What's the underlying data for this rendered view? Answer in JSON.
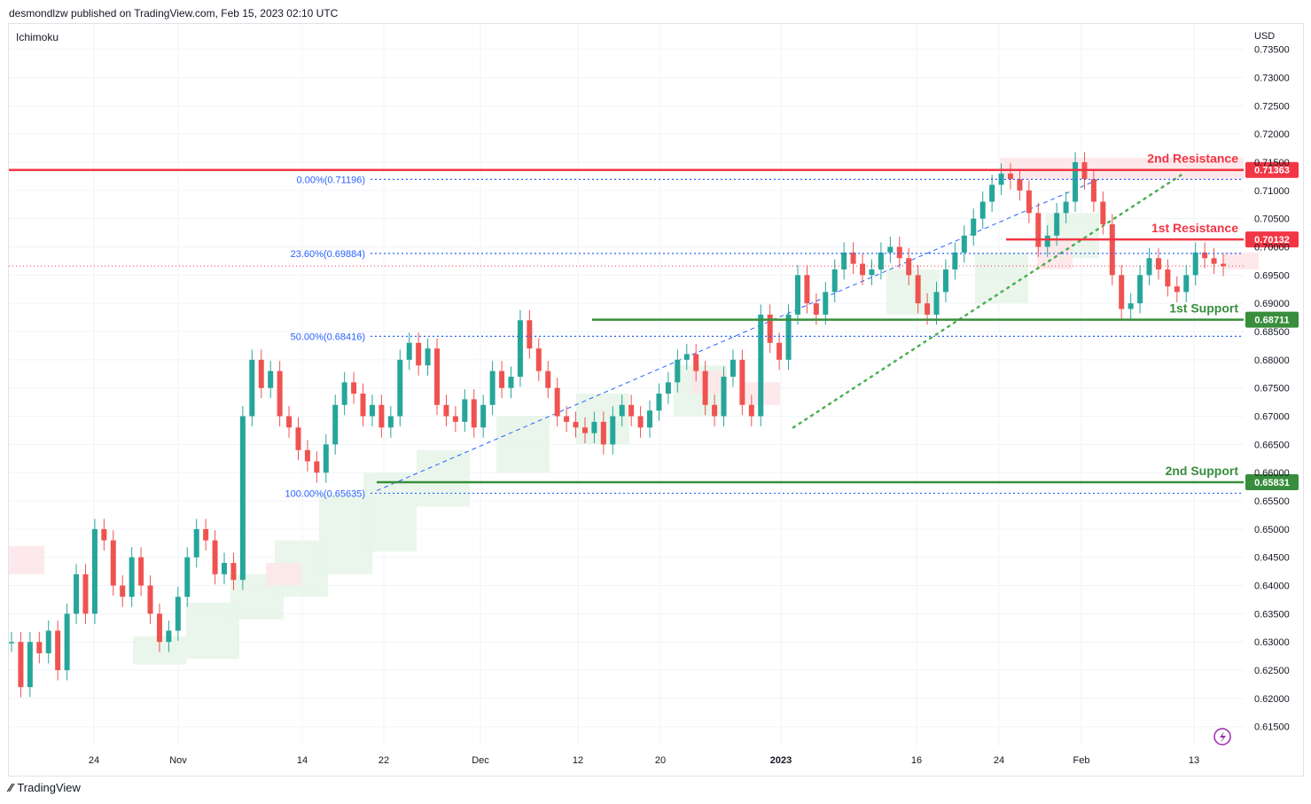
{
  "header": {
    "publisher_line": "desmondlzw published on TradingView.com, Feb 15, 2023 02:10 UTC"
  },
  "indicator_label": "Ichimoku",
  "footer": {
    "brand": "TradingView",
    "logo_icon": "tradingview-logo-icon"
  },
  "colors": {
    "resistance": "#f23645",
    "support": "#388e3c",
    "fib": "#2962ff",
    "candle_up": "#26a69a",
    "candle_down": "#ef5350",
    "trend_green": "#4caf50",
    "cloud_green": "#e8f5e9",
    "cloud_red": "#fde7e9"
  },
  "chart_data": {
    "type": "candlestick",
    "symbol_currency": "USD",
    "ylim": [
      0.6115,
      0.7395
    ],
    "y_ticks": [
      "0.73500",
      "0.73000",
      "0.72500",
      "0.72000",
      "0.71500",
      "0.71000",
      "0.70500",
      "0.70000",
      "0.69500",
      "0.69000",
      "0.68500",
      "0.68000",
      "0.67500",
      "0.67000",
      "0.66500",
      "0.66000",
      "0.65500",
      "0.65000",
      "0.64500",
      "0.64000",
      "0.63500",
      "0.63000",
      "0.62500",
      "0.62000",
      "0.61500"
    ],
    "x_ticks": [
      {
        "label": "24",
        "bold": false
      },
      {
        "label": "Nov",
        "bold": false
      },
      {
        "label": "14",
        "bold": false
      },
      {
        "label": "22",
        "bold": false
      },
      {
        "label": "Dec",
        "bold": false
      },
      {
        "label": "12",
        "bold": false
      },
      {
        "label": "20",
        "bold": false
      },
      {
        "label": "2023",
        "bold": true
      },
      {
        "label": "16",
        "bold": false
      },
      {
        "label": "24",
        "bold": false
      },
      {
        "label": "Feb",
        "bold": false
      },
      {
        "label": "13",
        "bold": false
      }
    ],
    "levels": [
      {
        "name": "2nd Resistance",
        "value": 0.71363,
        "tag": "0.71363",
        "kind": "resistance"
      },
      {
        "name": "1st Resistance",
        "value": 0.70132,
        "tag": "0.70132",
        "kind": "resistance"
      },
      {
        "name": "1st Support",
        "value": 0.68711,
        "tag": "0.68711",
        "kind": "support"
      },
      {
        "name": "2nd Support",
        "value": 0.65831,
        "tag": "0.65831",
        "kind": "support"
      }
    ],
    "fibonacci": [
      {
        "label": "0.00%(0.71196)",
        "value": 0.71196
      },
      {
        "label": "23.60%(0.69884)",
        "value": 0.69884
      },
      {
        "label": "50.00%(0.68416)",
        "value": 0.68416
      },
      {
        "label": "100.00%(0.65635)",
        "value": 0.65635
      }
    ],
    "close_price_line": 0.6966,
    "price_path": [
      0.63,
      0.622,
      0.63,
      0.628,
      0.632,
      0.625,
      0.635,
      0.642,
      0.635,
      0.65,
      0.648,
      0.64,
      0.638,
      0.645,
      0.64,
      0.635,
      0.63,
      0.632,
      0.638,
      0.645,
      0.65,
      0.648,
      0.642,
      0.644,
      0.641,
      0.67,
      0.68,
      0.675,
      0.678,
      0.67,
      0.668,
      0.664,
      0.662,
      0.66,
      0.665,
      0.672,
      0.676,
      0.674,
      0.67,
      0.672,
      0.668,
      0.67,
      0.68,
      0.683,
      0.679,
      0.682,
      0.672,
      0.67,
      0.669,
      0.673,
      0.668,
      0.672,
      0.678,
      0.675,
      0.677,
      0.687,
      0.682,
      0.678,
      0.675,
      0.67,
      0.669,
      0.668,
      0.667,
      0.669,
      0.665,
      0.67,
      0.672,
      0.67,
      0.668,
      0.671,
      0.674,
      0.676,
      0.68,
      0.681,
      0.678,
      0.672,
      0.67,
      0.677,
      0.68,
      0.672,
      0.67,
      0.688,
      0.683,
      0.68,
      0.688,
      0.695,
      0.69,
      0.688,
      0.692,
      0.696,
      0.699,
      0.697,
      0.695,
      0.696,
      0.699,
      0.7,
      0.698,
      0.695,
      0.69,
      0.688,
      0.692,
      0.696,
      0.699,
      0.702,
      0.705,
      0.708,
      0.711,
      0.713,
      0.712,
      0.71,
      0.706,
      0.7,
      0.702,
      0.706,
      0.708,
      0.715,
      0.712,
      0.708,
      0.704,
      0.695,
      0.689,
      0.69,
      0.695,
      0.698,
      0.696,
      0.693,
      0.692,
      0.695,
      0.699,
      0.698,
      0.697,
      0.6966
    ],
    "ichimoku_cloud_green": [
      [
        0.626,
        0.631
      ],
      [
        0.627,
        0.637
      ],
      [
        0.634,
        0.642
      ],
      [
        0.638,
        0.648
      ],
      [
        0.642,
        0.656
      ],
      [
        0.646,
        0.66
      ],
      [
        0.654,
        0.664
      ],
      [
        0.66,
        0.67
      ],
      [
        0.665,
        0.674
      ],
      [
        0.67,
        0.679
      ],
      [
        0.688,
        0.696
      ],
      [
        0.69,
        0.699
      ],
      [
        0.698,
        0.706
      ]
    ],
    "ichimoku_cloud_red": [
      [
        0.642,
        0.647
      ],
      [
        0.64,
        0.644
      ],
      [
        0.674,
        0.678
      ],
      [
        0.672,
        0.676
      ],
      [
        0.696,
        0.701
      ],
      [
        0.696,
        0.699
      ]
    ]
  },
  "toolbar": {
    "flash_icon": "lightning-icon"
  }
}
